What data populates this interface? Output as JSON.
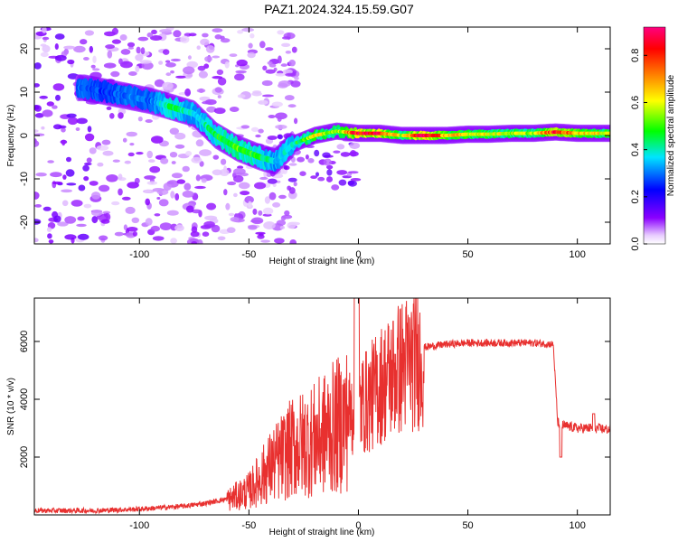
{
  "title": "PAZ1.2024.324.15.59.G07",
  "chart_data": [
    {
      "type": "heatmap",
      "xlabel": "Height of straight line (km)",
      "ylabel": "Frequency (Hz)",
      "xlim": [
        -148,
        115
      ],
      "ylim": [
        -25,
        25
      ],
      "xticks": [
        -100,
        -50,
        0,
        50,
        100
      ],
      "yticks": [
        -20,
        -10,
        0,
        10,
        20
      ],
      "colorbar": {
        "label": "Normalized spectral amplitude",
        "range": [
          0,
          0.92
        ],
        "ticks": [
          0.0,
          0.2,
          0.4,
          0.6,
          0.8
        ],
        "colormap": [
          "#ffffff",
          "#e8ccff",
          "#8a00ff",
          "#0000ff",
          "#00e5ff",
          "#00ff00",
          "#ffff00",
          "#ff8000",
          "#ff0000",
          "#ff0080"
        ]
      },
      "ridge": {
        "x": [
          -125,
          -115,
          -105,
          -95,
          -85,
          -75,
          -65,
          -55,
          -45,
          -38,
          -30,
          -20,
          -10,
          0,
          10,
          20,
          30,
          40,
          50,
          60,
          70,
          80,
          90,
          100,
          110,
          115
        ],
        "y": [
          11,
          10,
          9,
          8,
          6.5,
          5,
          0,
          -3,
          -5,
          -6,
          -2,
          0,
          1,
          0.5,
          0.5,
          0,
          0,
          0,
          0.3,
          0.3,
          0.5,
          0.5,
          0.8,
          0.5,
          0.5,
          0.5
        ],
        "amplitude": [
          0.28,
          0.25,
          0.3,
          0.28,
          0.45,
          0.35,
          0.45,
          0.5,
          0.45,
          0.35,
          0.4,
          0.6,
          0.5,
          0.85,
          0.8,
          0.55,
          0.9,
          0.65,
          0.6,
          0.6,
          0.55,
          0.55,
          0.8,
          0.65,
          0.6,
          0.6
        ]
      }
    },
    {
      "type": "line",
      "xlabel": "Height of straight line (km)",
      "ylabel": "SNR (10 * v/v)",
      "xlim": [
        -148,
        115
      ],
      "ylim": [
        0,
        7500
      ],
      "xticks": [
        -100,
        -50,
        0,
        50,
        100
      ],
      "yticks": [
        2000,
        4000,
        6000
      ],
      "color": "#e8302f",
      "envelope": {
        "x": [
          -148,
          -120,
          -100,
          -90,
          -80,
          -70,
          -60,
          -50,
          -40,
          -30,
          -20,
          -10,
          -5,
          0,
          5,
          10,
          20,
          30,
          40,
          50,
          60,
          70,
          80,
          89,
          91,
          93,
          100,
          108,
          115
        ],
        "y": [
          150,
          150,
          200,
          250,
          300,
          400,
          550,
          900,
          1800,
          2500,
          2800,
          3300,
          3600,
          3900,
          4200,
          4700,
          5400,
          5800,
          5900,
          5950,
          5950,
          5950,
          5950,
          5900,
          3200,
          3100,
          3000,
          3000,
          2950
        ]
      }
    }
  ]
}
